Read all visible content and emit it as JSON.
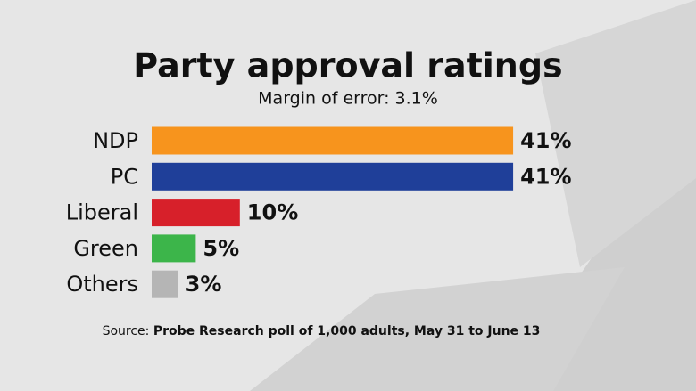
{
  "chart_data": {
    "type": "barh",
    "title": "Party approval ratings",
    "subtitle": "Margin of error: 3.1%",
    "categories": [
      "NDP",
      "PC",
      "Liberal",
      "Green",
      "Others"
    ],
    "values": [
      41,
      41,
      10,
      5,
      3
    ],
    "value_labels": [
      "41%",
      "41%",
      "10%",
      "5%",
      "3%"
    ],
    "colors": [
      "#f7941d",
      "#1f3f99",
      "#d7202a",
      "#3cb54a",
      "#b5b5b5"
    ],
    "source_label": "Source:",
    "source": "Probe Research poll of 1,000 adults, May 31 to June 13"
  }
}
